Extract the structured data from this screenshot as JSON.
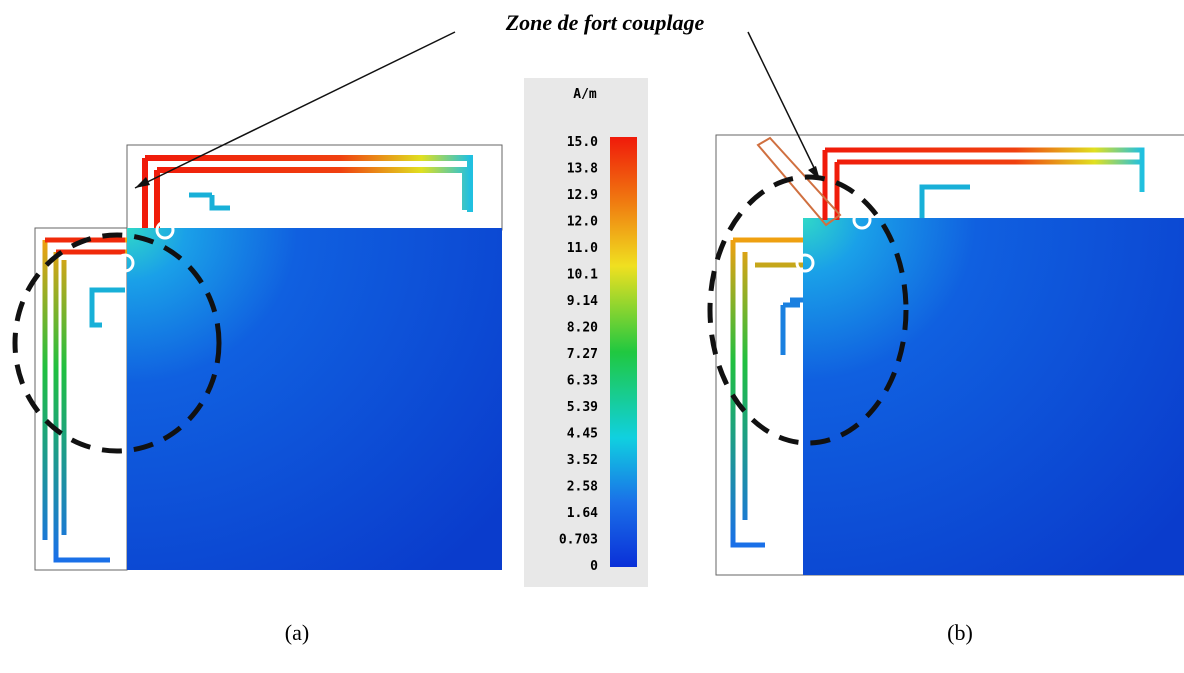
{
  "annotation": "Zone de fort couplage",
  "colorbar": {
    "unit": "A/m",
    "labels": [
      "15.0",
      "13.8",
      "12.9",
      "12.0",
      "11.0",
      "10.1",
      "9.14",
      "8.20",
      "7.27",
      "6.33",
      "5.39",
      "4.45",
      "3.52",
      "2.58",
      "1.64",
      "0.703",
      "0"
    ]
  },
  "captions": [
    "(a)",
    "(b)"
  ]
}
